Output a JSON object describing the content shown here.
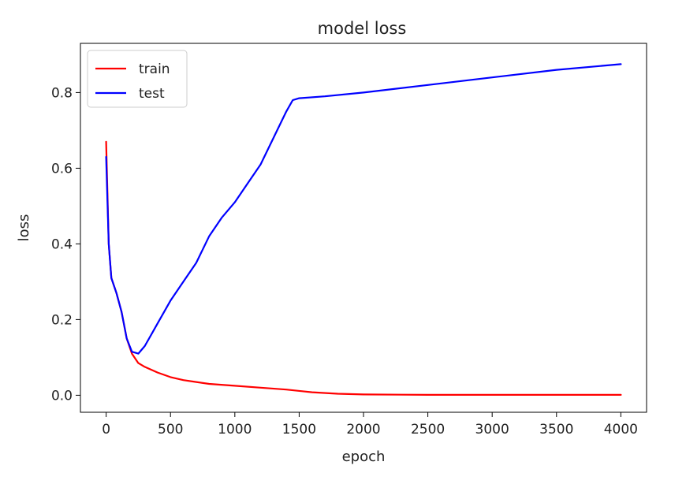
{
  "chart_data": {
    "type": "line",
    "title": "model loss",
    "xlabel": "epoch",
    "ylabel": "loss",
    "xlim": [
      -200,
      4200
    ],
    "ylim": [
      -0.045,
      0.93
    ],
    "xticks": [
      0,
      500,
      1000,
      1500,
      2000,
      2500,
      3000,
      3500,
      4000
    ],
    "yticks": [
      0.0,
      0.2,
      0.4,
      0.6,
      0.8
    ],
    "xtick_labels": [
      "0",
      "500",
      "1000",
      "1500",
      "2000",
      "2500",
      "3000",
      "3500",
      "4000"
    ],
    "ytick_labels": [
      "0.0",
      "0.2",
      "0.4",
      "0.6",
      "0.8"
    ],
    "grid": false,
    "legend_position": "top-left",
    "series": [
      {
        "name": "train",
        "color": "#ff0000",
        "points": [
          [
            0,
            0.67
          ],
          [
            20,
            0.4
          ],
          [
            40,
            0.31
          ],
          [
            80,
            0.27
          ],
          [
            120,
            0.22
          ],
          [
            160,
            0.15
          ],
          [
            200,
            0.11
          ],
          [
            250,
            0.085
          ],
          [
            300,
            0.075
          ],
          [
            400,
            0.06
          ],
          [
            500,
            0.048
          ],
          [
            600,
            0.04
          ],
          [
            700,
            0.035
          ],
          [
            800,
            0.03
          ],
          [
            1000,
            0.025
          ],
          [
            1200,
            0.02
          ],
          [
            1400,
            0.015
          ],
          [
            1600,
            0.008
          ],
          [
            1800,
            0.004
          ],
          [
            2000,
            0.002
          ],
          [
            2500,
            0.001
          ],
          [
            3000,
            0.001
          ],
          [
            4000,
            0.001
          ]
        ]
      },
      {
        "name": "test",
        "color": "#0000ff",
        "points": [
          [
            0,
            0.63
          ],
          [
            20,
            0.4
          ],
          [
            40,
            0.31
          ],
          [
            80,
            0.27
          ],
          [
            120,
            0.22
          ],
          [
            160,
            0.15
          ],
          [
            200,
            0.115
          ],
          [
            250,
            0.11
          ],
          [
            300,
            0.13
          ],
          [
            350,
            0.16
          ],
          [
            400,
            0.19
          ],
          [
            500,
            0.25
          ],
          [
            600,
            0.3
          ],
          [
            700,
            0.35
          ],
          [
            800,
            0.42
          ],
          [
            900,
            0.47
          ],
          [
            1000,
            0.51
          ],
          [
            1100,
            0.56
          ],
          [
            1200,
            0.61
          ],
          [
            1300,
            0.68
          ],
          [
            1400,
            0.75
          ],
          [
            1450,
            0.78
          ],
          [
            1500,
            0.785
          ],
          [
            1700,
            0.79
          ],
          [
            2000,
            0.8
          ],
          [
            2500,
            0.82
          ],
          [
            3000,
            0.84
          ],
          [
            3500,
            0.86
          ],
          [
            4000,
            0.875
          ]
        ]
      }
    ]
  }
}
